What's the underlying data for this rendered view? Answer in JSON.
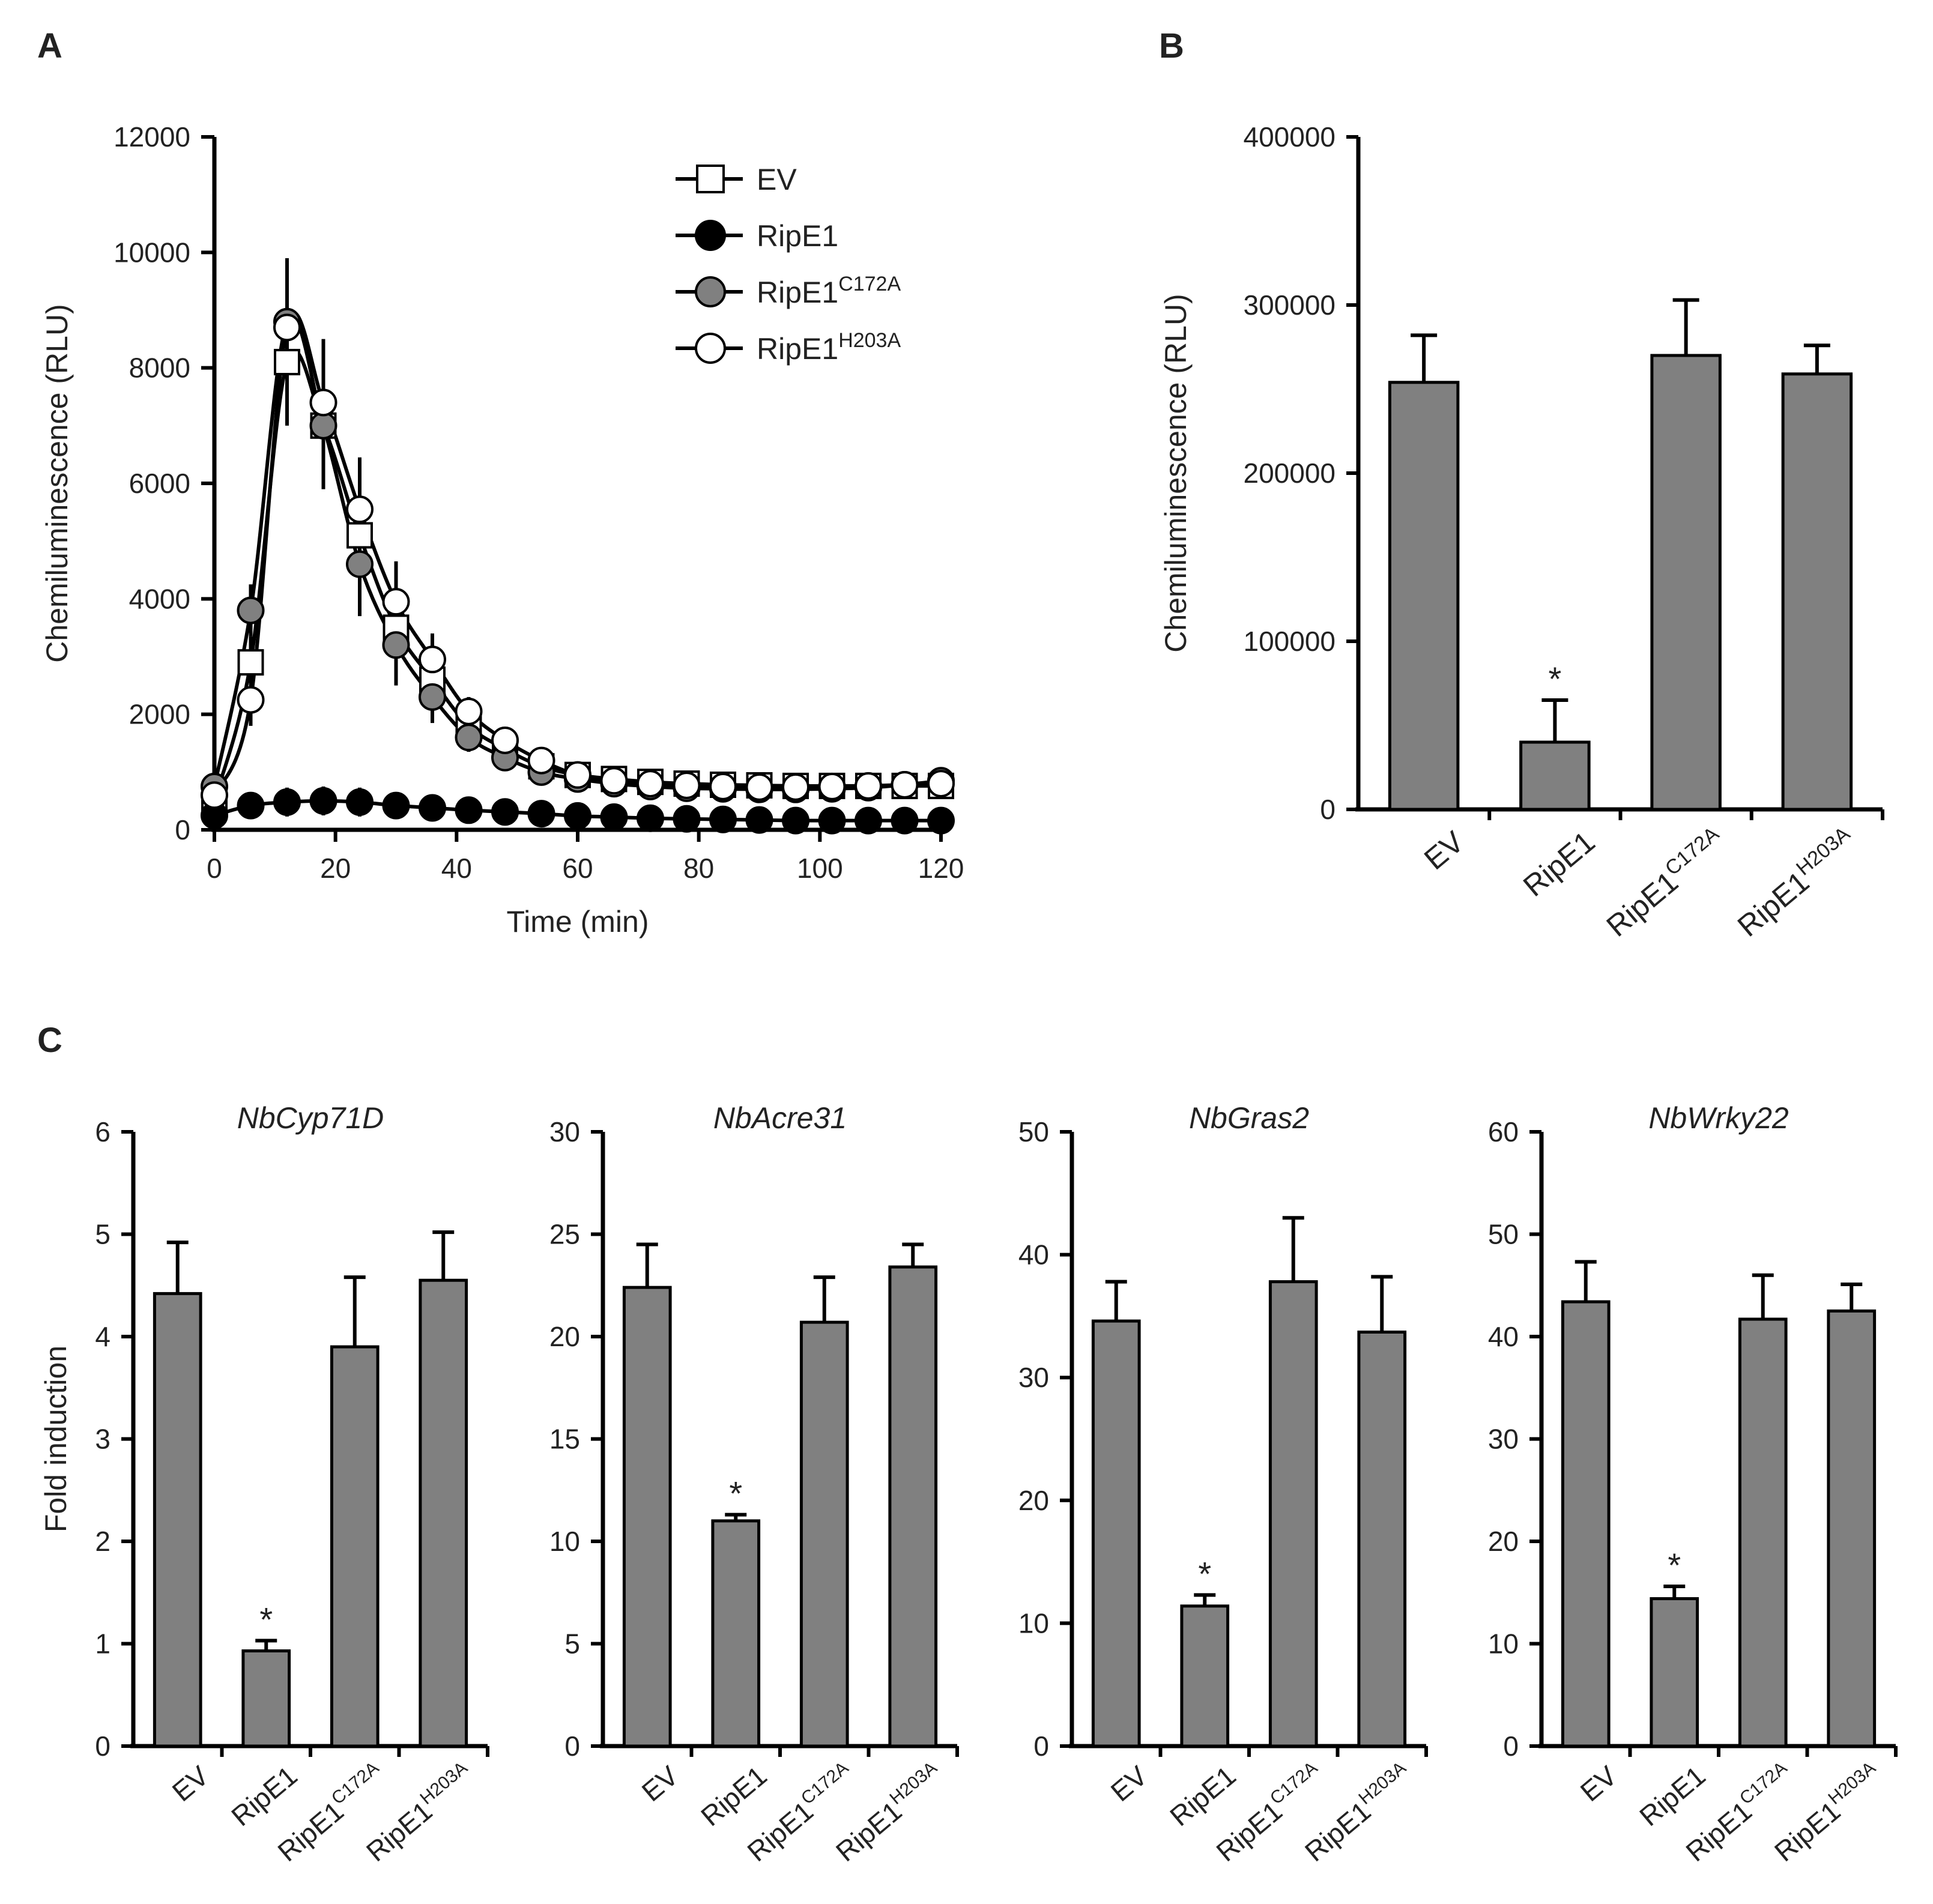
{
  "panel_labels": [
    "A",
    "B",
    "C"
  ],
  "chart_data": [
    {
      "id": "A",
      "type": "line",
      "xlabel": "Time  (min)",
      "ylabel": "Chemiluminescence  (RLU)",
      "xlim": [
        0,
        120
      ],
      "ylim": [
        0,
        12000
      ],
      "xticks": [
        0,
        20,
        40,
        60,
        80,
        100,
        120
      ],
      "yticks": [
        0,
        2000,
        4000,
        6000,
        8000,
        10000,
        12000
      ],
      "x": [
        0,
        6,
        12,
        18,
        24,
        30,
        36,
        42,
        48,
        54,
        60,
        66,
        72,
        78,
        84,
        90,
        96,
        102,
        108,
        114,
        120
      ],
      "series": [
        {
          "name": "EV",
          "sup": "",
          "marker": "square",
          "fill": "#ffffff",
          "values": [
            500,
            2900,
            8100,
            7000,
            5100,
            3500,
            2600,
            1800,
            1400,
            1100,
            950,
            880,
            830,
            800,
            780,
            770,
            760,
            760,
            760,
            760,
            760
          ],
          "errors": [
            100,
            450,
            1100,
            1100,
            900,
            700,
            450,
            250,
            150,
            100,
            80,
            60,
            50,
            40,
            40,
            40,
            40,
            40,
            40,
            40,
            40
          ]
        },
        {
          "name": "RipE1",
          "sup": "",
          "marker": "circle",
          "fill": "#000000",
          "values": [
            250,
            420,
            480,
            500,
            480,
            420,
            380,
            340,
            310,
            280,
            240,
            220,
            200,
            190,
            180,
            170,
            160,
            160,
            160,
            160,
            160
          ],
          "errors": [
            80,
            150,
            250,
            250,
            250,
            200,
            200,
            150,
            100,
            80,
            60,
            50,
            40,
            40,
            40,
            40,
            40,
            40,
            40,
            40,
            40
          ]
        },
        {
          "name": "RipE1",
          "sup": "C172A",
          "marker": "circle",
          "fill": "#808080",
          "values": [
            750,
            3800,
            8800,
            7000,
            4600,
            3200,
            2300,
            1600,
            1250,
            1000,
            880,
            800,
            750,
            720,
            710,
            700,
            700,
            710,
            730,
            780,
            850
          ],
          "errors": [
            100,
            450,
            1100,
            1100,
            900,
            700,
            450,
            250,
            150,
            100,
            80,
            60,
            50,
            40,
            40,
            40,
            40,
            40,
            40,
            40,
            40
          ]
        },
        {
          "name": "RipE1",
          "sup": "H203A",
          "marker": "circle",
          "fill": "#ffffff",
          "values": [
            600,
            2250,
            8700,
            7400,
            5550,
            3950,
            2950,
            2050,
            1550,
            1200,
            950,
            850,
            800,
            770,
            750,
            740,
            740,
            750,
            760,
            780,
            800
          ],
          "errors": [
            100,
            450,
            1100,
            1100,
            900,
            700,
            450,
            250,
            150,
            100,
            80,
            60,
            50,
            40,
            40,
            40,
            40,
            40,
            40,
            40,
            40
          ]
        }
      ]
    },
    {
      "id": "B",
      "type": "bar",
      "ylabel": "Chemiluminescence  (RLU)",
      "ylim": [
        0,
        400000
      ],
      "yticks": [
        0,
        100000,
        200000,
        300000,
        400000
      ],
      "categories": [
        {
          "name": "EV",
          "sup": ""
        },
        {
          "name": "RipE1",
          "sup": ""
        },
        {
          "name": "RipE1",
          "sup": "C172A"
        },
        {
          "name": "RipE1",
          "sup": "H203A"
        }
      ],
      "values": [
        254000,
        40000,
        270000,
        259000
      ],
      "errors": [
        28000,
        25000,
        33000,
        17000
      ],
      "significance": [
        "",
        "*",
        "",
        ""
      ]
    },
    {
      "id": "C1",
      "type": "bar",
      "title": "NbCyp71D",
      "ylabel": "Fold induction",
      "ylim": [
        0,
        6
      ],
      "yticks": [
        0,
        1,
        2,
        3,
        4,
        5,
        6
      ],
      "categories": [
        {
          "name": "EV",
          "sup": ""
        },
        {
          "name": "RipE1",
          "sup": ""
        },
        {
          "name": "RipE1",
          "sup": "C172A"
        },
        {
          "name": "RipE1",
          "sup": "H203A"
        }
      ],
      "values": [
        4.42,
        0.93,
        3.9,
        4.55
      ],
      "errors": [
        0.5,
        0.1,
        0.68,
        0.47
      ],
      "significance": [
        "",
        "*",
        "",
        ""
      ]
    },
    {
      "id": "C2",
      "type": "bar",
      "title": "NbAcre31",
      "ylabel": "",
      "ylim": [
        0,
        30
      ],
      "yticks": [
        0,
        5,
        10,
        15,
        20,
        25,
        30
      ],
      "categories": [
        {
          "name": "EV",
          "sup": ""
        },
        {
          "name": "RipE1",
          "sup": ""
        },
        {
          "name": "RipE1",
          "sup": "C172A"
        },
        {
          "name": "RipE1",
          "sup": "H203A"
        }
      ],
      "values": [
        22.4,
        11.0,
        20.7,
        23.4
      ],
      "errors": [
        2.1,
        0.3,
        2.2,
        1.1
      ],
      "significance": [
        "",
        "*",
        "",
        ""
      ]
    },
    {
      "id": "C3",
      "type": "bar",
      "title": "NbGras2",
      "ylabel": "",
      "ylim": [
        0,
        50
      ],
      "yticks": [
        0,
        10,
        20,
        30,
        40,
        50
      ],
      "categories": [
        {
          "name": "EV",
          "sup": ""
        },
        {
          "name": "RipE1",
          "sup": ""
        },
        {
          "name": "RipE1",
          "sup": "C172A"
        },
        {
          "name": "RipE1",
          "sup": "H203A"
        }
      ],
      "values": [
        34.6,
        11.4,
        37.8,
        33.7
      ],
      "errors": [
        3.2,
        0.9,
        5.2,
        4.5
      ],
      "significance": [
        "",
        "*",
        "",
        ""
      ]
    },
    {
      "id": "C4",
      "type": "bar",
      "title": "NbWrky22",
      "ylabel": "",
      "ylim": [
        0,
        60
      ],
      "yticks": [
        0,
        10,
        20,
        30,
        40,
        50,
        60
      ],
      "categories": [
        {
          "name": "EV",
          "sup": ""
        },
        {
          "name": "RipE1",
          "sup": ""
        },
        {
          "name": "RipE1",
          "sup": "C172A"
        },
        {
          "name": "RipE1",
          "sup": "H203A"
        }
      ],
      "values": [
        43.4,
        14.4,
        41.7,
        42.5
      ],
      "errors": [
        3.9,
        1.2,
        4.3,
        2.6
      ],
      "significance": [
        "",
        "*",
        "",
        ""
      ]
    }
  ]
}
